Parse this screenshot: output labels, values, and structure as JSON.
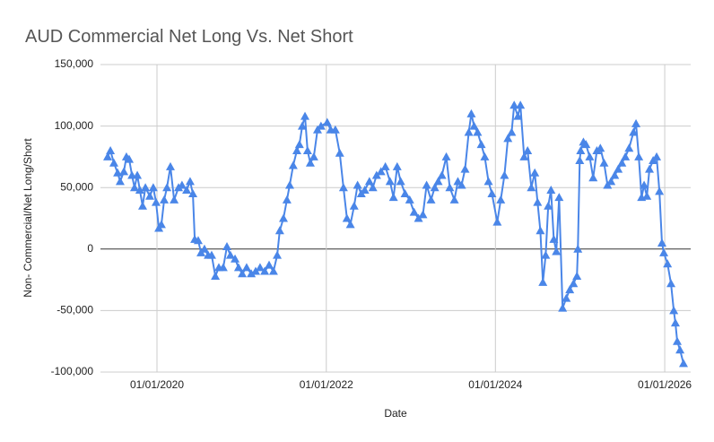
{
  "chart_data": {
    "type": "line",
    "title": "AUD Commercial Net Long Vs. Net Short",
    "x_label": "Date",
    "y_label": "Non- Commercial/Net Long/Short",
    "xlim": [
      "2019-05-02",
      "2026-04-23"
    ],
    "xticks": [
      {
        "value": "2020-01-01",
        "label": "01/01/2020"
      },
      {
        "value": "2022-01-01",
        "label": "01/01/2022"
      },
      {
        "value": "2024-01-01",
        "label": "01/01/2024"
      },
      {
        "value": "2026-01-01",
        "label": "01/01/2026"
      }
    ],
    "ylim": [
      -100000,
      150000
    ],
    "yticks": [
      {
        "value": -100000,
        "label": "-100,000"
      },
      {
        "value": -50000,
        "label": "-50,000"
      },
      0,
      {
        "value": 50000,
        "label": "50,000"
      },
      {
        "value": 100000,
        "label": "100,000"
      },
      {
        "value": 150000,
        "label": "150,000"
      }
    ],
    "grid": true,
    "marker": "triangle",
    "x": [
      "2019-06-02",
      "2019-06-14",
      "2019-06-29",
      "2019-07-15",
      "2019-07-26",
      "2019-08-11",
      "2019-08-22",
      "2019-09-03",
      "2019-09-15",
      "2019-09-26",
      "2019-10-08",
      "2019-10-19",
      "2019-10-31",
      "2019-11-12",
      "2019-12-01",
      "2019-12-16",
      "2019-12-28",
      "2020-01-09",
      "2020-01-20",
      "2020-02-01",
      "2020-02-13",
      "2020-02-28",
      "2020-03-15",
      "2020-04-03",
      "2020-04-18",
      "2020-05-08",
      "2020-05-23",
      "2020-06-04",
      "2020-06-12",
      "2020-06-27",
      "2020-07-09",
      "2020-07-24",
      "2020-08-09",
      "2020-08-24",
      "2020-09-09",
      "2020-09-24",
      "2020-10-13",
      "2020-10-29",
      "2020-11-13",
      "2020-12-03",
      "2020-12-18",
      "2021-01-03",
      "2021-01-22",
      "2021-02-11",
      "2021-03-02",
      "2021-03-21",
      "2021-04-10",
      "2021-04-29",
      "2021-05-18",
      "2021-06-03",
      "2021-06-14",
      "2021-06-30",
      "2021-07-15",
      "2021-07-27",
      "2021-08-11",
      "2021-08-27",
      "2021-09-07",
      "2021-09-19",
      "2021-10-01",
      "2021-10-12",
      "2021-10-24",
      "2021-11-08",
      "2021-11-24",
      "2021-12-09",
      "2022-01-05",
      "2022-01-20",
      "2022-02-09",
      "2022-02-28",
      "2022-03-16",
      "2022-03-31",
      "2022-04-15",
      "2022-05-01",
      "2022-05-16",
      "2022-06-01",
      "2022-06-16",
      "2022-07-06",
      "2022-07-21",
      "2022-08-06",
      "2022-08-25",
      "2022-09-13",
      "2022-10-03",
      "2022-10-18",
      "2022-11-03",
      "2022-11-18",
      "2022-12-07",
      "2022-12-27",
      "2023-01-15",
      "2023-02-03",
      "2023-02-22",
      "2023-03-10",
      "2023-03-29",
      "2023-04-14",
      "2023-04-29",
      "2023-05-15",
      "2023-06-03",
      "2023-06-18",
      "2023-07-08",
      "2023-07-23",
      "2023-08-08",
      "2023-08-23",
      "2023-09-08",
      "2023-09-19",
      "2023-10-01",
      "2023-10-16",
      "2023-11-01",
      "2023-11-16",
      "2023-12-02",
      "2023-12-17",
      "2024-01-09",
      "2024-01-24",
      "2024-02-09",
      "2024-02-24",
      "2024-03-11",
      "2024-03-22",
      "2024-04-07",
      "2024-04-18",
      "2024-05-04",
      "2024-05-19",
      "2024-06-04",
      "2024-06-19",
      "2024-07-01",
      "2024-07-13",
      "2024-07-24",
      "2024-08-05",
      "2024-08-16",
      "2024-08-28",
      "2024-09-09",
      "2024-09-20",
      "2024-10-02",
      "2024-10-17",
      "2024-11-02",
      "2024-11-17",
      "2024-12-03",
      "2024-12-18",
      "2024-12-22",
      "2024-12-30",
      "2025-01-03",
      "2025-01-15",
      "2025-01-26",
      "2025-02-11",
      "2025-02-26",
      "2025-03-14",
      "2025-03-29",
      "2025-04-14",
      "2025-04-29",
      "2025-05-14",
      "2025-05-30",
      "2025-06-14",
      "2025-06-30",
      "2025-07-15",
      "2025-07-31",
      "2025-08-19",
      "2025-08-30",
      "2025-09-11",
      "2025-09-23",
      "2025-10-04",
      "2025-10-16",
      "2025-10-27",
      "2025-11-12",
      "2025-11-27",
      "2025-12-09",
      "2025-12-20",
      "2025-12-28",
      "2026-01-13",
      "2026-01-28",
      "2026-02-09",
      "2026-02-16",
      "2026-02-24",
      "2026-03-08",
      "2026-03-23"
    ],
    "series": [
      {
        "name": "Non- Commercial/Net Long/Short",
        "color": "#4a86e8",
        "values": [
          75000,
          80000,
          70000,
          62000,
          55000,
          63000,
          75000,
          73000,
          60000,
          50000,
          60000,
          48000,
          35000,
          50000,
          43000,
          50000,
          38000,
          17000,
          20000,
          40000,
          50000,
          67000,
          40000,
          50000,
          52000,
          48000,
          55000,
          45000,
          8000,
          7000,
          -3000,
          0,
          -5000,
          -5000,
          -22000,
          -15000,
          -15000,
          2000,
          -5000,
          -8000,
          -15000,
          -20000,
          -15000,
          -20000,
          -18000,
          -15000,
          -18000,
          -13000,
          -18000,
          -5000,
          15000,
          25000,
          40000,
          52000,
          68000,
          80000,
          85000,
          100000,
          108000,
          80000,
          70000,
          75000,
          97000,
          100000,
          103000,
          97000,
          97000,
          78000,
          50000,
          25000,
          20000,
          35000,
          52000,
          45000,
          48000,
          55000,
          50000,
          60000,
          63000,
          67000,
          55000,
          42000,
          67000,
          55000,
          45000,
          40000,
          30000,
          25000,
          28000,
          52000,
          40000,
          50000,
          55000,
          60000,
          75000,
          50000,
          40000,
          55000,
          52000,
          65000,
          95000,
          110000,
          100000,
          95000,
          85000,
          75000,
          55000,
          45000,
          22000,
          40000,
          60000,
          90000,
          95000,
          117000,
          108000,
          117000,
          75000,
          80000,
          50000,
          62000,
          38000,
          15000,
          -27000,
          -5000,
          35000,
          48000,
          8000,
          -2000,
          42000,
          -48000,
          -40000,
          -33000,
          -28000,
          -22000,
          0,
          72000,
          80000,
          87000,
          85000,
          75000,
          58000,
          80000,
          82000,
          70000,
          52000,
          55000,
          60000,
          65000,
          70000,
          75000,
          82000,
          95000,
          102000,
          75000,
          42000,
          52000,
          43000,
          65000,
          72000,
          75000,
          47000,
          5000,
          -3000,
          -12000,
          -28000,
          -50000,
          -60000,
          -75000,
          -82000,
          -93000
        ]
      }
    ]
  }
}
